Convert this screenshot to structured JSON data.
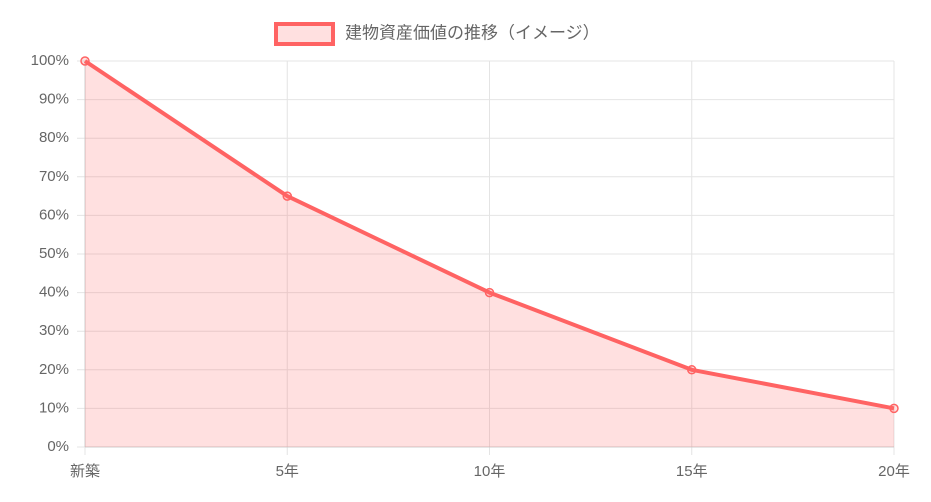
{
  "chart_data": {
    "type": "line",
    "categories": [
      "新築",
      "5年",
      "10年",
      "15年",
      "20年"
    ],
    "series": [
      {
        "name": "建物資産価値の推移（イメージ）",
        "color": "#ff6363",
        "fill": "rgba(255,99,99,0.2)",
        "values": [
          100,
          65,
          40,
          20,
          10
        ]
      }
    ],
    "ylim": [
      0,
      100
    ],
    "yticks": [
      {
        "value": 0,
        "label": "0%"
      },
      {
        "value": 10,
        "label": "10%"
      },
      {
        "value": 20,
        "label": "20%"
      },
      {
        "value": 30,
        "label": "30%"
      },
      {
        "value": 40,
        "label": "40%"
      },
      {
        "value": 50,
        "label": "50%"
      },
      {
        "value": 60,
        "label": "60%"
      },
      {
        "value": 70,
        "label": "70%"
      },
      {
        "value": 80,
        "label": "80%"
      },
      {
        "value": 90,
        "label": "90%"
      },
      {
        "value": 100,
        "label": "100%"
      }
    ],
    "grid": true,
    "legend": "top"
  }
}
